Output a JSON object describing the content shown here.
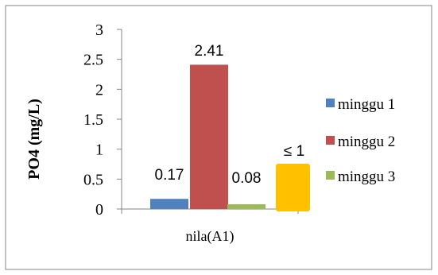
{
  "chart_data": {
    "type": "bar",
    "categories": [
      "nila(A1)"
    ],
    "ylabel": "PO4 (mg/L)",
    "xlabel": "",
    "ylim": [
      0,
      3
    ],
    "yticks": [
      "0",
      "0.5",
      "1",
      "1.5",
      "2",
      "2.5",
      "3"
    ],
    "series": [
      {
        "name": "minggu 1",
        "values": [
          0.17
        ],
        "label": "0.17",
        "color": "#4F81BD"
      },
      {
        "name": "minggu 2",
        "values": [
          2.41
        ],
        "label": "2.41",
        "color": "#C0504D"
      },
      {
        "name": "minggu 3",
        "values": [
          0.08
        ],
        "label": "0.08",
        "color": "#9BBB59"
      }
    ],
    "legend_position": "right",
    "grid": false,
    "annotation": {
      "text": "≤ 1",
      "color": "#FFC000"
    }
  }
}
